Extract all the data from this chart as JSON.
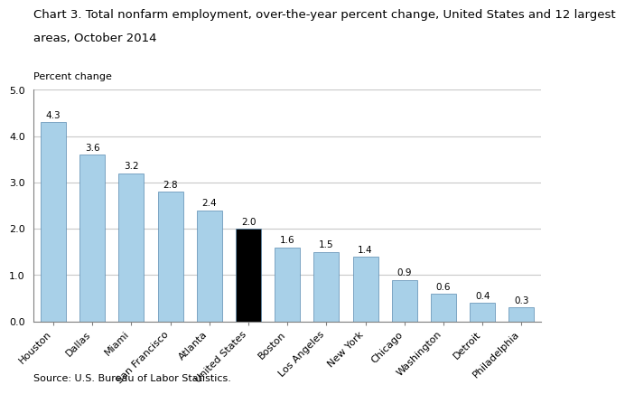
{
  "title_line1": "Chart 3. Total nonfarm employment, over-the-year percent change, United States and 12 largest",
  "title_line2": "areas, October 2014",
  "ylabel": "Percent change",
  "source": "Source: U.S. Bureau of Labor Statistics.",
  "categories": [
    "Houston",
    "Dallas",
    "Miami",
    "San Francisco",
    "Atlanta",
    "United States",
    "Boston",
    "Los Angeles",
    "New York",
    "Chicago",
    "Washington",
    "Detroit",
    "Philadelphia"
  ],
  "values": [
    4.3,
    3.6,
    3.2,
    2.8,
    2.4,
    2.0,
    1.6,
    1.5,
    1.4,
    0.9,
    0.6,
    0.4,
    0.3
  ],
  "bar_colors": [
    "#a8d0e8",
    "#a8d0e8",
    "#a8d0e8",
    "#a8d0e8",
    "#a8d0e8",
    "#000000",
    "#a8d0e8",
    "#a8d0e8",
    "#a8d0e8",
    "#a8d0e8",
    "#a8d0e8",
    "#a8d0e8",
    "#a8d0e8"
  ],
  "bar_edgecolor": "#5a8ab0",
  "ylim": [
    0,
    5.0
  ],
  "yticks": [
    0.0,
    1.0,
    2.0,
    3.0,
    4.0,
    5.0
  ],
  "title_fontsize": 9.5,
  "ylabel_fontsize": 8,
  "tick_fontsize": 8,
  "value_fontsize": 7.5,
  "source_fontsize": 8,
  "background_color": "#ffffff",
  "grid_color": "#c8c8c8",
  "spine_color": "#808080"
}
